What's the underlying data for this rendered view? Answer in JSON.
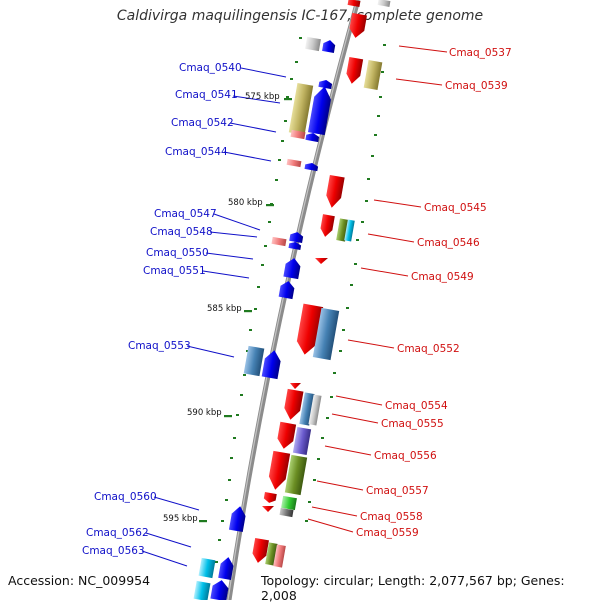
{
  "title": "Caldivirga maquilingensis IC-167, complete genome",
  "accession_text": "Accession: NC_009954",
  "summary_text": "Topology: circular; Length: 2,077,567 bp; Genes: 2,008",
  "colors": {
    "forward_label": "#1010c8",
    "reverse_label": "#d01010",
    "backbone": "#8c8c8c",
    "tick": "#1f7a1f"
  },
  "scale_labels": [
    "575 kbp",
    "580 kbp",
    "585 kbp",
    "590 kbp",
    "595 kbp"
  ],
  "forward_labels": [
    "Cmaq_0540",
    "Cmaq_0541",
    "Cmaq_0542",
    "Cmaq_0544",
    "Cmaq_0547",
    "Cmaq_0548",
    "Cmaq_0550",
    "Cmaq_0551",
    "Cmaq_0553",
    "Cmaq_0560",
    "Cmaq_0562",
    "Cmaq_0563"
  ],
  "reverse_labels": [
    "Cmaq_0537",
    "Cmaq_0539",
    "Cmaq_0545",
    "Cmaq_0546",
    "Cmaq_0549",
    "Cmaq_0552",
    "Cmaq_0554",
    "Cmaq_0555",
    "Cmaq_0556",
    "Cmaq_0557",
    "Cmaq_0558",
    "Cmaq_0559"
  ]
}
